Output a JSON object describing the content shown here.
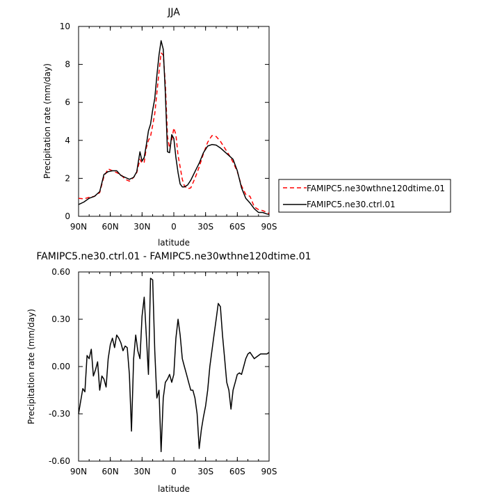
{
  "chart_data": [
    {
      "type": "line",
      "title": "JJA",
      "xlabel": "latitude",
      "ylabel": "Precipitation rate (mm/day)",
      "x_ticks": [
        {
          "value": 90,
          "label": "90N"
        },
        {
          "value": 60,
          "label": "60N"
        },
        {
          "value": 30,
          "label": "30N"
        },
        {
          "value": 0,
          "label": "0"
        },
        {
          "value": -30,
          "label": "30S"
        },
        {
          "value": -60,
          "label": "60S"
        },
        {
          "value": -90,
          "label": "90S"
        }
      ],
      "y_ticks": [
        {
          "value": 0,
          "label": "0"
        },
        {
          "value": 2,
          "label": "2"
        },
        {
          "value": 4,
          "label": "4"
        },
        {
          "value": 6,
          "label": "6"
        },
        {
          "value": 8,
          "label": "8"
        },
        {
          "value": 10,
          "label": "10"
        }
      ],
      "xlim": [
        90,
        -90
      ],
      "ylim": [
        0,
        10
      ],
      "legend_position": "right",
      "series": [
        {
          "name": "FAMIPC5.ne30wthne120dtime.01",
          "color": "#ff0000",
          "dash": "dashed",
          "x": [
            90,
            85,
            80,
            75,
            70,
            66,
            62,
            58,
            54,
            50,
            46,
            42,
            38,
            35,
            32,
            30,
            28,
            26,
            24,
            22,
            20,
            18,
            16,
            14,
            12,
            10,
            8,
            6,
            4,
            2,
            0,
            -2,
            -4,
            -6,
            -8,
            -10,
            -13,
            -16,
            -20,
            -24,
            -28,
            -32,
            -36,
            -40,
            -44,
            -48,
            -52,
            -56,
            -60,
            -64,
            -68,
            -72,
            -76,
            -80,
            -84,
            -88,
            -90
          ],
          "y": [
            0.95,
            0.92,
            1.0,
            1.05,
            1.25,
            2.1,
            2.5,
            2.4,
            2.3,
            2.2,
            1.95,
            1.85,
            2.05,
            2.3,
            3.0,
            2.8,
            2.85,
            3.6,
            4.0,
            4.2,
            4.8,
            5.4,
            6.5,
            7.6,
            8.6,
            8.5,
            7.0,
            4.2,
            3.6,
            4.0,
            4.65,
            4.3,
            3.2,
            2.6,
            1.95,
            1.6,
            1.45,
            1.5,
            2.0,
            2.6,
            3.3,
            3.9,
            4.25,
            4.2,
            3.95,
            3.6,
            3.25,
            2.85,
            2.35,
            1.6,
            1.15,
            1.05,
            0.5,
            0.35,
            0.3,
            0.2,
            0.15
          ]
        },
        {
          "name": "FAMIPC5.ne30.ctrl.01",
          "color": "#000000",
          "dash": "solid",
          "x": [
            90,
            85,
            80,
            75,
            70,
            66,
            62,
            58,
            54,
            50,
            46,
            42,
            38,
            35,
            32,
            30,
            28,
            26,
            24,
            22,
            20,
            18,
            16,
            14,
            12,
            10,
            8,
            6,
            4,
            2,
            0,
            -2,
            -4,
            -6,
            -8,
            -10,
            -13,
            -16,
            -20,
            -24,
            -28,
            -32,
            -36,
            -40,
            -44,
            -48,
            -52,
            -56,
            -60,
            -64,
            -68,
            -72,
            -76,
            -80,
            -84,
            -88,
            -90
          ],
          "y": [
            0.62,
            0.75,
            0.95,
            1.05,
            1.3,
            2.2,
            2.35,
            2.4,
            2.4,
            2.15,
            2.05,
            1.95,
            2.05,
            2.35,
            3.4,
            2.9,
            3.1,
            3.75,
            4.5,
            4.85,
            5.6,
            6.2,
            7.4,
            8.5,
            9.25,
            8.8,
            6.5,
            3.4,
            3.35,
            4.3,
            4.1,
            3.1,
            2.3,
            1.7,
            1.55,
            1.55,
            1.65,
            1.9,
            2.35,
            2.8,
            3.35,
            3.7,
            3.78,
            3.75,
            3.6,
            3.4,
            3.2,
            3.0,
            2.4,
            1.5,
            0.95,
            0.7,
            0.4,
            0.2,
            0.2,
            0.12,
            0.1
          ]
        }
      ]
    },
    {
      "type": "line",
      "title": "FAMIPC5.ne30.ctrl.01 - FAMIPC5.ne30wthne120dtime.01",
      "xlabel": "latitude",
      "ylabel": "Precipitation rate (mm/day)",
      "x_ticks": [
        {
          "value": 90,
          "label": "90N"
        },
        {
          "value": 60,
          "label": "60N"
        },
        {
          "value": 30,
          "label": "30N"
        },
        {
          "value": 0,
          "label": "0"
        },
        {
          "value": -30,
          "label": "30S"
        },
        {
          "value": -60,
          "label": "60S"
        },
        {
          "value": -90,
          "label": "90S"
        }
      ],
      "y_ticks": [
        {
          "value": -0.6,
          "label": "-0.60"
        },
        {
          "value": -0.3,
          "label": "-0.30"
        },
        {
          "value": 0,
          "label": "0.00"
        },
        {
          "value": 0.3,
          "label": "0.30"
        },
        {
          "value": 0.6,
          "label": "0.60"
        }
      ],
      "xlim": [
        90,
        -90
      ],
      "ylim": [
        -0.6,
        0.6
      ],
      "series": [
        {
          "color": "#000000",
          "dash": "solid",
          "x": [
            90,
            88,
            86,
            84,
            82,
            80,
            78,
            76,
            74,
            72,
            70,
            68,
            66,
            64,
            62,
            60,
            58,
            56,
            54,
            52,
            50,
            48,
            46,
            44,
            42,
            40,
            38,
            36,
            34,
            32,
            30,
            28,
            26,
            24,
            22,
            20,
            18,
            16,
            14,
            12,
            10,
            8,
            6,
            4,
            2,
            0,
            -2,
            -4,
            -6,
            -8,
            -10,
            -12,
            -14,
            -16,
            -18,
            -20,
            -22,
            -24,
            -26,
            -28,
            -30,
            -32,
            -34,
            -36,
            -38,
            -40,
            -42,
            -44,
            -46,
            -48,
            -50,
            -52,
            -54,
            -56,
            -58,
            -60,
            -62,
            -64,
            -66,
            -68,
            -70,
            -72,
            -74,
            -76,
            -78,
            -80,
            -82,
            -84,
            -86,
            -88,
            -90
          ],
          "y": [
            -0.3,
            -0.22,
            -0.14,
            -0.16,
            0.07,
            0.05,
            0.11,
            -0.06,
            -0.02,
            0.03,
            -0.15,
            -0.06,
            -0.08,
            -0.13,
            0.05,
            0.14,
            0.18,
            0.12,
            0.2,
            0.18,
            0.15,
            0.1,
            0.13,
            0.12,
            -0.05,
            -0.41,
            0.05,
            0.2,
            0.1,
            0.05,
            0.32,
            0.44,
            0.2,
            -0.05,
            0.56,
            0.55,
            0.1,
            -0.2,
            -0.15,
            -0.54,
            -0.2,
            -0.1,
            -0.08,
            -0.05,
            -0.1,
            -0.05,
            0.18,
            0.3,
            0.2,
            0.05,
            0.0,
            -0.05,
            -0.1,
            -0.15,
            -0.15,
            -0.2,
            -0.3,
            -0.52,
            -0.4,
            -0.32,
            -0.25,
            -0.15,
            0.0,
            0.1,
            0.2,
            0.3,
            0.4,
            0.38,
            0.2,
            0.05,
            -0.1,
            -0.15,
            -0.27,
            -0.15,
            -0.1,
            -0.05,
            -0.04,
            -0.05,
            0.0,
            0.05,
            0.08,
            0.09,
            0.07,
            0.05,
            0.06,
            0.07,
            0.08,
            0.08,
            0.08,
            0.08,
            0.09
          ]
        }
      ]
    }
  ]
}
